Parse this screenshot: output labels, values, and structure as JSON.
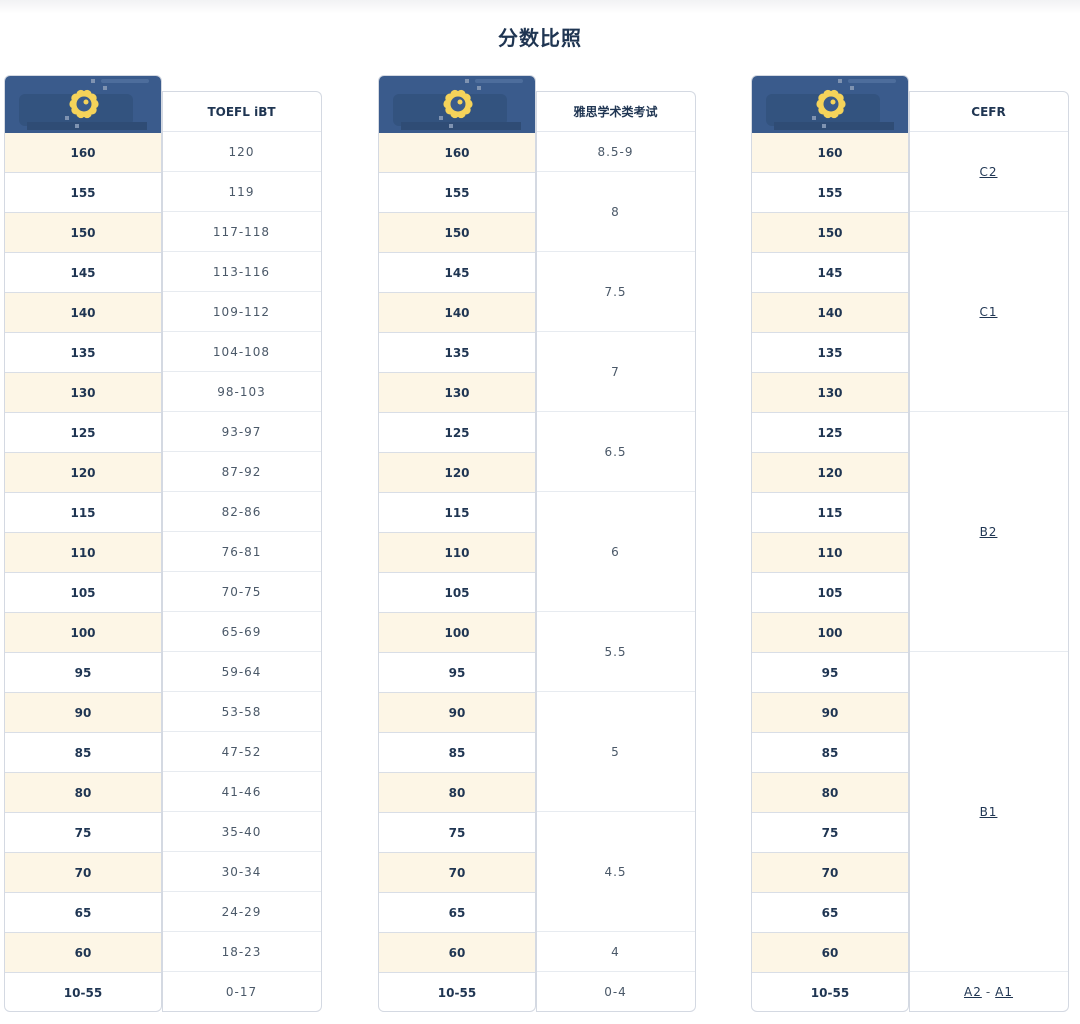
{
  "title": "分数比照",
  "scores": [
    "160",
    "155",
    "150",
    "145",
    "140",
    "135",
    "130",
    "125",
    "120",
    "115",
    "110",
    "105",
    "100",
    "95",
    "90",
    "85",
    "80",
    "75",
    "70",
    "65",
    "60",
    "10-55"
  ],
  "tables": [
    {
      "header": "TOEFL iBT",
      "cells": [
        {
          "text": "120",
          "span": 1
        },
        {
          "text": "119",
          "span": 1
        },
        {
          "text": "117-118",
          "span": 1
        },
        {
          "text": "113-116",
          "span": 1
        },
        {
          "text": "109-112",
          "span": 1
        },
        {
          "text": "104-108",
          "span": 1
        },
        {
          "text": "98-103",
          "span": 1
        },
        {
          "text": "93-97",
          "span": 1
        },
        {
          "text": "87-92",
          "span": 1
        },
        {
          "text": "82-86",
          "span": 1
        },
        {
          "text": "76-81",
          "span": 1
        },
        {
          "text": "70-75",
          "span": 1
        },
        {
          "text": "65-69",
          "span": 1
        },
        {
          "text": "59-64",
          "span": 1
        },
        {
          "text": "53-58",
          "span": 1
        },
        {
          "text": "47-52",
          "span": 1
        },
        {
          "text": "41-46",
          "span": 1
        },
        {
          "text": "35-40",
          "span": 1
        },
        {
          "text": "30-34",
          "span": 1
        },
        {
          "text": "24-29",
          "span": 1
        },
        {
          "text": "18-23",
          "span": 1
        },
        {
          "text": "0-17",
          "span": 1
        }
      ]
    },
    {
      "header": "雅思学术类考试",
      "cells": [
        {
          "text": "8.5-9",
          "span": 1
        },
        {
          "text": "8",
          "span": 2
        },
        {
          "text": "7.5",
          "span": 2
        },
        {
          "text": "7",
          "span": 2
        },
        {
          "text": "6.5",
          "span": 2
        },
        {
          "text": "6",
          "span": 3
        },
        {
          "text": "5.5",
          "span": 2
        },
        {
          "text": "5",
          "span": 3
        },
        {
          "text": "4.5",
          "span": 3
        },
        {
          "text": "4",
          "span": 1
        },
        {
          "text": "0-4",
          "span": 1
        }
      ]
    },
    {
      "header": "CEFR",
      "cells": [
        {
          "text": "C2",
          "span": 2,
          "link": true
        },
        {
          "text": "C1",
          "span": 5,
          "link": true
        },
        {
          "text": "B2",
          "span": 6,
          "link": true
        },
        {
          "text": "B1",
          "span": 8,
          "link": true
        },
        {
          "parts": [
            "A2",
            "A1"
          ],
          "span": 1,
          "link": true
        }
      ]
    }
  ],
  "colors": {
    "header_bg": "#3a5b8c",
    "score_alt_bg": "#fdf6e6",
    "text": "#1f3552",
    "logo": "#f5d35a"
  },
  "icons": {
    "logo": "badge-logo-icon"
  }
}
